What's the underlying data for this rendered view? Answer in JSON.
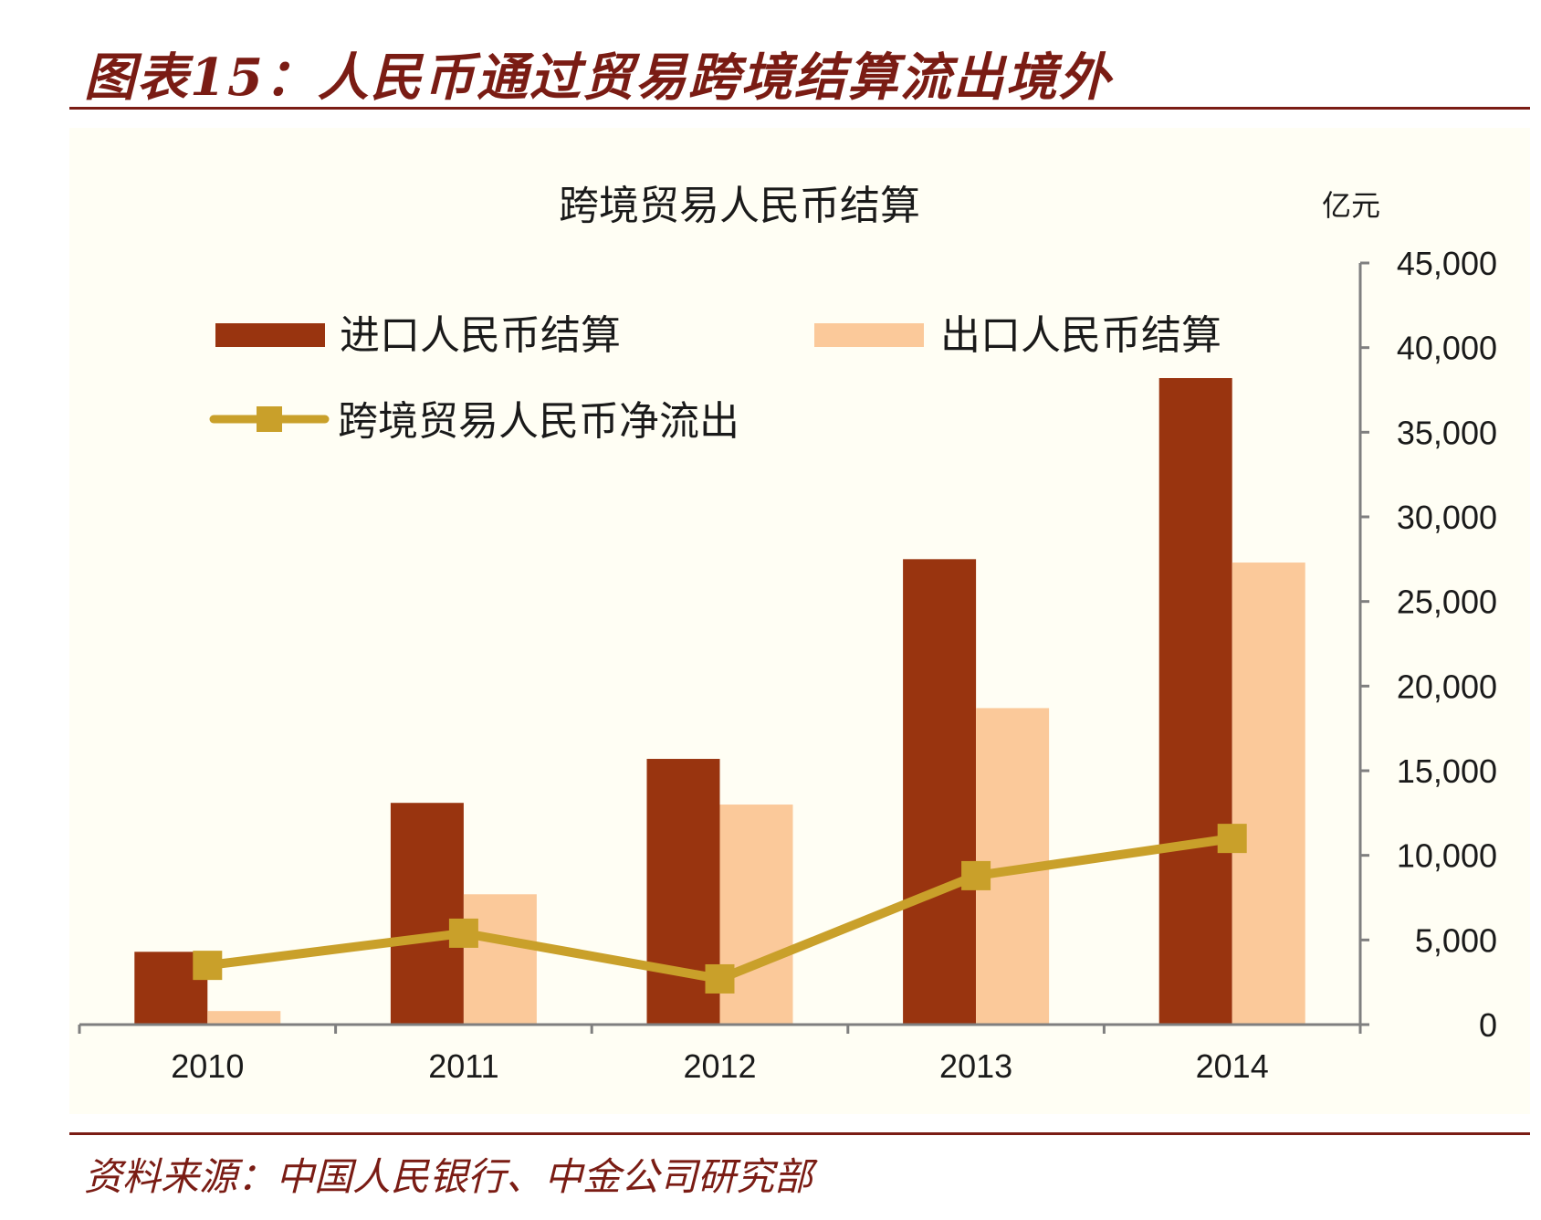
{
  "header": {
    "title": "图表15：人民币通过贸易跨境结算流出境外"
  },
  "footer": {
    "source": "资料来源：中国人民银行、中金公司研究部"
  },
  "colors": {
    "brand": "#7a1c14",
    "import_bar": "#99340f",
    "export_bar": "#fbc99a",
    "net_line": "#c9a02a",
    "axis": "#7f7f7f"
  },
  "chart_data": {
    "type": "bar",
    "title": "跨境贸易人民币结算",
    "unit_label": "亿元",
    "categories": [
      "2010",
      "2011",
      "2012",
      "2013",
      "2014"
    ],
    "y_ticks": [
      "45,000",
      "40,000",
      "35,000",
      "30,000",
      "25,000",
      "20,000",
      "15,000",
      "10,000",
      "5,000",
      "0"
    ],
    "ylim": [
      0,
      45000
    ],
    "y_axis_position": "right",
    "grid": false,
    "legend_position": "top-left",
    "series": [
      {
        "name": "进口人民币结算",
        "type": "bar",
        "color": "#99340f",
        "values": [
          4300,
          13100,
          15700,
          27500,
          38200
        ]
      },
      {
        "name": "出口人民币结算",
        "type": "bar",
        "color": "#fbc99a",
        "values": [
          800,
          7700,
          13000,
          18700,
          27300
        ]
      },
      {
        "name": "跨境贸易人民币净流出",
        "type": "line",
        "color": "#c9a02a",
        "values": [
          3500,
          5400,
          2700,
          8800,
          11000
        ]
      }
    ]
  }
}
